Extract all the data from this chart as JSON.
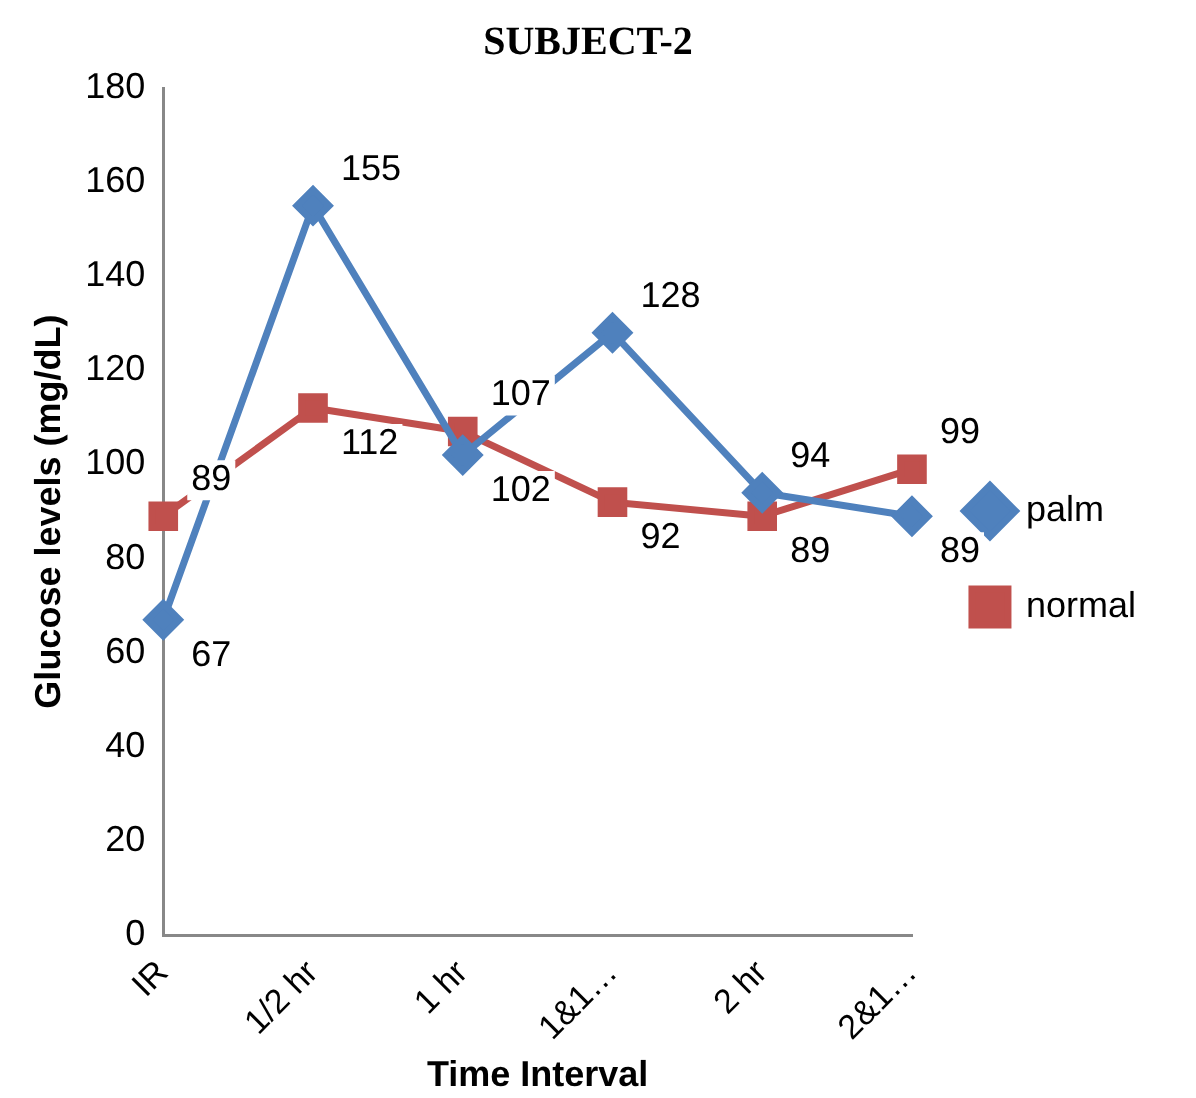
{
  "chart_data": {
    "type": "line",
    "title": "SUBJECT-2",
    "xlabel": "Time Interval",
    "ylabel": "Glucose levels (mg/dL)",
    "categories": [
      "IR",
      "1/2 hr",
      "1 hr",
      "1&1…",
      "2 hr",
      "2&1…"
    ],
    "series": [
      {
        "name": "palm",
        "color": "#4f81bd",
        "marker": "diamond",
        "values": [
          67,
          155,
          102,
          128,
          94,
          89
        ]
      },
      {
        "name": "normal",
        "color": "#c0504d",
        "marker": "square",
        "values": [
          89,
          112,
          107,
          92,
          89,
          99
        ]
      }
    ],
    "ylim": [
      0,
      180
    ],
    "yticks": [
      0,
      20,
      40,
      60,
      80,
      100,
      120,
      140,
      160,
      180
    ],
    "grid": false,
    "legend": "right",
    "data_labels": true,
    "line_style": "solid"
  }
}
